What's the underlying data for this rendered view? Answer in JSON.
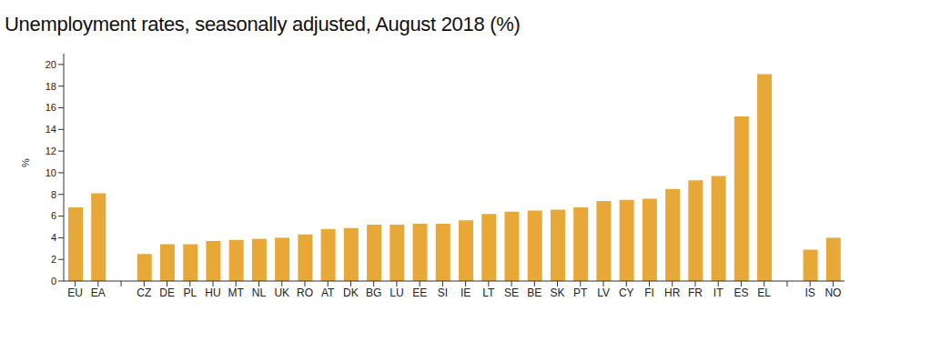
{
  "chart_data": {
    "type": "bar",
    "title": "Unemployment rates, seasonally adjusted, August 2018 (%)",
    "y_label": "%",
    "categories": [
      "EU",
      "EA",
      null,
      "CZ",
      "DE",
      "PL",
      "HU",
      "MT",
      "NL",
      "UK",
      "RO",
      "AT",
      "DK",
      "BG",
      "LU",
      "EE",
      "SI",
      "IE",
      "LT",
      "SE",
      "BE",
      "SK",
      "PT",
      "LV",
      "CY",
      "FI",
      "HR",
      "FR",
      "IT",
      "ES",
      "EL",
      null,
      "IS",
      "NO"
    ],
    "values": [
      6.8,
      8.1,
      null,
      2.5,
      3.4,
      3.4,
      3.7,
      3.8,
      3.9,
      4.0,
      4.3,
      4.8,
      4.9,
      5.2,
      5.2,
      5.3,
      5.3,
      5.6,
      6.2,
      6.4,
      6.5,
      6.6,
      6.8,
      7.4,
      7.5,
      7.6,
      8.5,
      9.3,
      9.7,
      15.2,
      19.1,
      null,
      2.9,
      4.0
    ],
    "color": "#e8a838",
    "ylim": [
      0,
      21
    ],
    "yticks": [
      0,
      2,
      4,
      6,
      8,
      10,
      12,
      14,
      16,
      18,
      20
    ],
    "grid": false
  }
}
